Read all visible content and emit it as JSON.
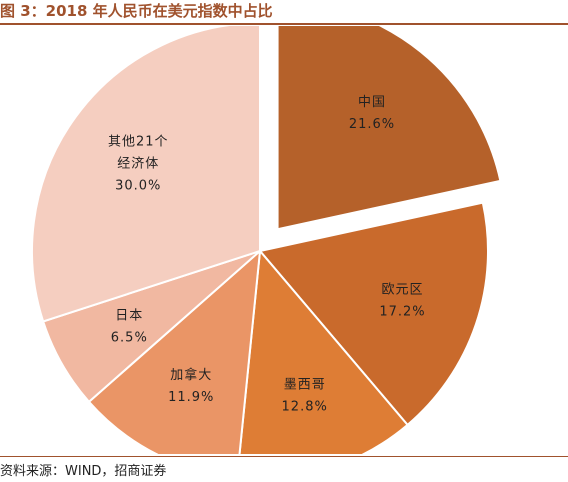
{
  "figure_title": "图 3：2018 年人民币在美元指数中占比",
  "source": "资料来源：WIND，招商证券",
  "chart_data": {
    "type": "pie",
    "title": "图 3：2018 年人民币在美元指数中占比",
    "slices": [
      {
        "label_lines": [
          "中国"
        ],
        "value": 21.6,
        "value_label": "21.6%",
        "color": "#b5612a",
        "exploded": true
      },
      {
        "label_lines": [
          "欧元区"
        ],
        "value": 17.2,
        "value_label": "17.2%",
        "color": "#c96a2c",
        "exploded": false
      },
      {
        "label_lines": [
          "墨西哥"
        ],
        "value": 12.8,
        "value_label": "12.8%",
        "color": "#de7d35",
        "exploded": false
      },
      {
        "label_lines": [
          "加拿大"
        ],
        "value": 11.9,
        "value_label": "11.9%",
        "color": "#ea9566",
        "exploded": false
      },
      {
        "label_lines": [
          "日本"
        ],
        "value": 6.5,
        "value_label": "6.5%",
        "color": "#f1b8a1",
        "exploded": false
      },
      {
        "label_lines": [
          "其他21个",
          "经济体"
        ],
        "value": 30.0,
        "value_label": "30.0%",
        "color": "#f5cec0",
        "exploded": false
      }
    ]
  }
}
